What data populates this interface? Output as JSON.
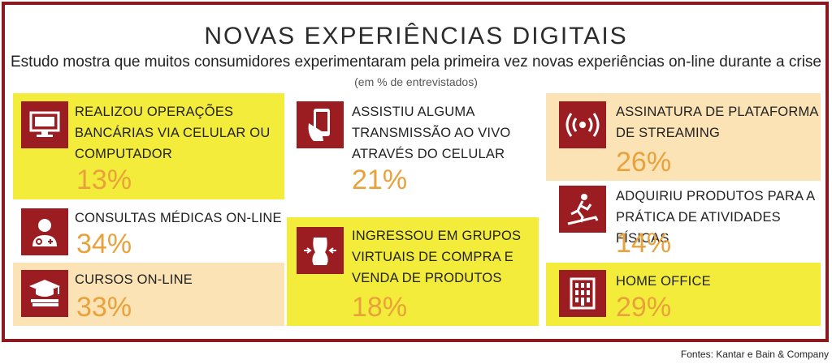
{
  "header": {
    "title": "NOVAS EXPERIÊNCIAS DIGITAIS",
    "subtitle": "Estudo mostra que muitos consumidores experimentaram pela primeira vez novas experiências on-line durante a crise",
    "unit": "(em % de entrevistados)"
  },
  "items": [
    {
      "label_lines": [
        "REALIZOU OPERAÇÕES",
        "BANCÁRIAS VIA CELULAR OU",
        "COMPUTADOR"
      ],
      "percent": "13%",
      "icon": "monitor-icon",
      "background": "#f4ec3a"
    },
    {
      "label_lines": [
        "CONSULTAS MÉDICAS ON-LINE"
      ],
      "percent": "34%",
      "icon": "doctor-icon",
      "background": "none"
    },
    {
      "label_lines": [
        "CURSOS ON-LINE"
      ],
      "percent": "33%",
      "icon": "graduation-icon",
      "background": "#fbe3b5"
    },
    {
      "label_lines": [
        "ASSISTIU ALGUMA",
        "TRANSMISSÃO AO VIVO",
        "ATRAVÉS DO CELULAR"
      ],
      "percent": "21%",
      "icon": "smartphone-icon",
      "background": "none"
    },
    {
      "label_lines": [
        "INGRESSOU EM GRUPOS",
        "VIRTUAIS DE COMPRA E",
        "VENDA DE PRODUTOS"
      ],
      "percent": "18%",
      "icon": "body-icon",
      "background": "#f4ec3a"
    },
    {
      "label_lines": [
        "ASSINATURA DE PLATAFORMA",
        "DE STREAMING"
      ],
      "percent": "26%",
      "icon": "broadcast-icon",
      "background": "#fbe3b5"
    },
    {
      "label_lines": [
        "ADQUIRIU PRODUTOS PARA A",
        "PRÁTICA DE ATIVIDADES FÍSICAS"
      ],
      "percent": "14%",
      "icon": "treadmill-icon",
      "background": "none"
    },
    {
      "label_lines": [
        "HOME OFFICE"
      ],
      "percent": "29%",
      "icon": "building-icon",
      "background": "#f4ec3a"
    }
  ],
  "footer": {
    "source": "Fontes: Kantar e Bain & Company"
  }
}
